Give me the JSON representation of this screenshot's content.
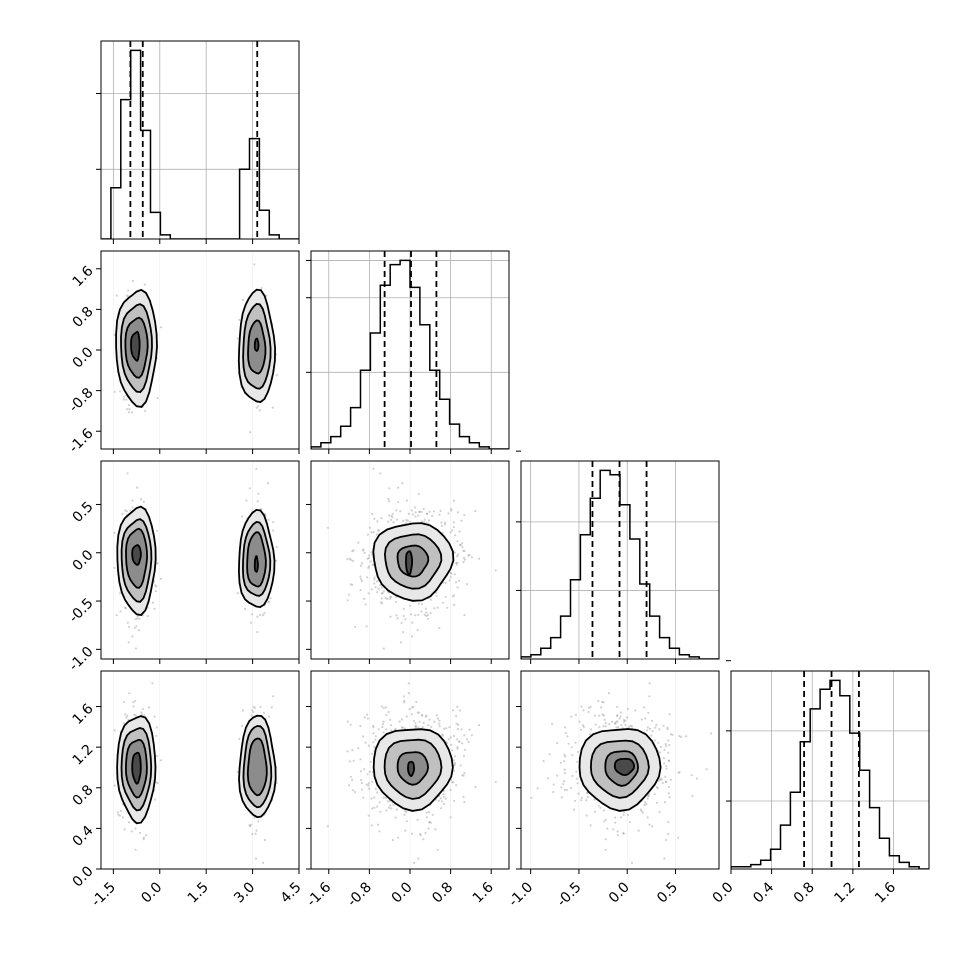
{
  "figure": {
    "type": "corner-plot",
    "parameters": 4
  },
  "chart_data": {
    "type": "corner",
    "grid": true,
    "quantile_lines": "dashed",
    "hist_bins": 20,
    "parameters": [
      {
        "range": [
          -1.9,
          4.5
        ],
        "ticks": [
          "-1.5",
          "0.0",
          "1.5",
          "3.0",
          "4.5"
        ],
        "tick_values": [
          -1.5,
          0.0,
          1.5,
          3.0,
          4.5
        ],
        "quantiles": [
          -0.95,
          -0.55,
          3.15
        ]
      },
      {
        "range": [
          -1.95,
          1.95
        ],
        "ticks": [
          "-1.6",
          "-0.8",
          "0.0",
          "0.8",
          "1.6"
        ],
        "tick_values": [
          -1.6,
          -0.8,
          0.0,
          0.8,
          1.6
        ],
        "quantiles": [
          -0.5,
          0.02,
          0.52
        ]
      },
      {
        "range": [
          -1.1,
          0.95
        ],
        "ticks": [
          "-1.0",
          "-0.5",
          "0.0",
          "0.5"
        ],
        "tick_values": [
          -1.0,
          -0.5,
          0.0,
          0.5
        ],
        "quantiles": [
          -0.36,
          -0.08,
          0.2
        ]
      },
      {
        "range": [
          0.0,
          1.95
        ],
        "ticks": [
          "0.0",
          "0.4",
          "0.8",
          "1.2",
          "1.6"
        ],
        "tick_values": [
          0.0,
          0.4,
          0.8,
          1.2,
          1.6
        ],
        "quantiles": [
          0.72,
          0.99,
          1.26
        ]
      }
    ],
    "histograms": [
      {
        "param": 0,
        "y_ticks": [
          0.34,
          0.71
        ],
        "values": [
          0.0,
          0.25,
          0.68,
          0.92,
          0.53,
          0.13,
          0.02,
          0.0,
          0.0,
          0.0,
          0.0,
          0.0,
          0.0,
          0.0,
          0.34,
          0.49,
          0.14,
          0.02,
          0.0,
          0.0
        ]
      },
      {
        "param": 1,
        "y_ticks": [
          0.37,
          0.73,
          0.91
        ],
        "values": [
          0.01,
          0.03,
          0.06,
          0.11,
          0.2,
          0.38,
          0.56,
          0.79,
          0.89,
          0.91,
          0.78,
          0.6,
          0.38,
          0.24,
          0.12,
          0.06,
          0.03,
          0.01,
          0.0,
          0.0
        ]
      },
      {
        "param": 2,
        "y_ticks": [
          0.32,
          0.64,
          0.97
        ],
        "values": [
          0.01,
          0.02,
          0.05,
          0.1,
          0.2,
          0.37,
          0.58,
          0.75,
          0.88,
          0.86,
          0.72,
          0.56,
          0.35,
          0.2,
          0.1,
          0.05,
          0.02,
          0.01,
          0.0,
          0.0
        ]
      },
      {
        "param": 3,
        "y_ticks": [
          0.31,
          0.63,
          0.95
        ],
        "values": [
          0.01,
          0.01,
          0.02,
          0.04,
          0.09,
          0.2,
          0.35,
          0.58,
          0.73,
          0.82,
          0.86,
          0.79,
          0.62,
          0.45,
          0.28,
          0.14,
          0.06,
          0.03,
          0.01,
          0.0
        ]
      }
    ],
    "mixture": {
      "p0_modes": [
        {
          "mean": -0.75,
          "sd": 0.25,
          "weight": 0.64
        },
        {
          "mean": 3.15,
          "sd": 0.22,
          "weight": 0.36
        }
      ],
      "p1": {
        "mean": 0.05,
        "sd": 0.5
      },
      "p2": {
        "mean": -0.08,
        "sd": 0.27
      },
      "p3": {
        "mean": 1.0,
        "sd": 0.27
      }
    },
    "contours": [
      {
        "x": 0,
        "y": 1,
        "levels": [
          {
            "clusters": [
              {
                "cx": -0.75,
                "cy": 0.08,
                "rx": 0.18,
                "ry": 0.28,
                "flatten_right": true
              },
              {
                "cx": 3.13,
                "cy": 0.1,
                "rx": 0.06,
                "ry": 0.12
              }
            ]
          },
          {
            "clusters": [
              {
                "cx": -0.75,
                "cy": 0.06,
                "rx": 0.36,
                "ry": 0.58
              },
              {
                "cx": 3.13,
                "cy": 0.04,
                "rx": 0.28,
                "ry": 0.52
              }
            ]
          },
          {
            "clusters": [
              {
                "cx": -0.75,
                "cy": 0.06,
                "rx": 0.5,
                "ry": 0.85
              },
              {
                "cx": 3.13,
                "cy": 0.04,
                "rx": 0.44,
                "ry": 0.83
              }
            ]
          },
          {
            "clusters": [
              {
                "cx": -0.75,
                "cy": 0.06,
                "rx": 0.66,
                "ry": 1.13
              },
              {
                "cx": 3.13,
                "cy": 0.04,
                "rx": 0.58,
                "ry": 1.1
              }
            ]
          }
        ]
      },
      {
        "x": 0,
        "y": 2,
        "levels": [
          {
            "clusters": [
              {
                "cx": -0.75,
                "cy": -0.02,
                "rx": 0.14,
                "ry": 0.1
              },
              {
                "cx": 3.12,
                "cy": -0.12,
                "rx": 0.05,
                "ry": 0.08
              }
            ]
          },
          {
            "clusters": [
              {
                "cx": -0.75,
                "cy": -0.05,
                "rx": 0.34,
                "ry": 0.3
              },
              {
                "cx": 3.12,
                "cy": -0.08,
                "rx": 0.3,
                "ry": 0.28
              }
            ]
          },
          {
            "clusters": [
              {
                "cx": -0.75,
                "cy": -0.07,
                "rx": 0.48,
                "ry": 0.42
              },
              {
                "cx": 3.12,
                "cy": -0.08,
                "rx": 0.44,
                "ry": 0.38
              }
            ]
          },
          {
            "clusters": [
              {
                "cx": -0.75,
                "cy": -0.07,
                "rx": 0.62,
                "ry": 0.55
              },
              {
                "cx": 3.12,
                "cy": -0.08,
                "rx": 0.57,
                "ry": 0.5
              }
            ]
          }
        ]
      },
      {
        "x": 0,
        "y": 3,
        "levels": [
          {
            "clusters": [
              {
                "cx": -0.75,
                "cy": 1.0,
                "rx": 0.14,
                "ry": 0.15
              }
            ]
          },
          {
            "clusters": [
              {
                "cx": -0.75,
                "cy": 1.0,
                "rx": 0.34,
                "ry": 0.28
              },
              {
                "cx": 3.15,
                "cy": 1.0,
                "rx": 0.3,
                "ry": 0.28
              }
            ]
          },
          {
            "clusters": [
              {
                "cx": -0.75,
                "cy": 1.0,
                "rx": 0.48,
                "ry": 0.4
              },
              {
                "cx": 3.15,
                "cy": 1.0,
                "rx": 0.44,
                "ry": 0.4
              }
            ]
          },
          {
            "clusters": [
              {
                "cx": -0.75,
                "cy": 1.0,
                "rx": 0.62,
                "ry": 0.52
              },
              {
                "cx": 3.15,
                "cy": 1.0,
                "rx": 0.58,
                "ry": 0.5
              }
            ]
          }
        ]
      },
      {
        "x": 1,
        "y": 2,
        "levels": [
          {
            "clusters": [
              {
                "cx": -0.02,
                "cy": -0.1,
                "rx": 0.06,
                "ry": 0.12
              }
            ]
          },
          {
            "clusters": [
              {
                "cx": 0.05,
                "cy": -0.08,
                "rx": 0.3,
                "ry": 0.16
              }
            ]
          },
          {
            "clusters": [
              {
                "cx": 0.05,
                "cy": -0.08,
                "rx": 0.55,
                "ry": 0.28
              }
            ]
          },
          {
            "clusters": [
              {
                "cx": 0.05,
                "cy": -0.08,
                "rx": 0.78,
                "ry": 0.4
              }
            ]
          }
        ]
      },
      {
        "x": 1,
        "y": 3,
        "levels": [
          {
            "clusters": [
              {
                "cx": 0.02,
                "cy": 0.99,
                "rx": 0.06,
                "ry": 0.07
              }
            ]
          },
          {
            "clusters": [
              {
                "cx": 0.05,
                "cy": 1.0,
                "rx": 0.3,
                "ry": 0.16
              }
            ]
          },
          {
            "clusters": [
              {
                "cx": 0.05,
                "cy": 1.0,
                "rx": 0.56,
                "ry": 0.29
              }
            ]
          },
          {
            "clusters": [
              {
                "cx": 0.05,
                "cy": 1.0,
                "rx": 0.78,
                "ry": 0.4
              }
            ]
          }
        ]
      },
      {
        "x": 2,
        "y": 3,
        "levels": [
          {
            "clusters": [
              {
                "cx": -0.03,
                "cy": 1.01,
                "rx": 0.1,
                "ry": 0.08
              }
            ]
          },
          {
            "clusters": [
              {
                "cx": -0.06,
                "cy": 1.0,
                "rx": 0.17,
                "ry": 0.17
              }
            ]
          },
          {
            "clusters": [
              {
                "cx": -0.08,
                "cy": 1.0,
                "rx": 0.3,
                "ry": 0.28
              }
            ]
          },
          {
            "clusters": [
              {
                "cx": -0.08,
                "cy": 1.0,
                "rx": 0.42,
                "ry": 0.4
              }
            ]
          }
        ]
      }
    ]
  }
}
